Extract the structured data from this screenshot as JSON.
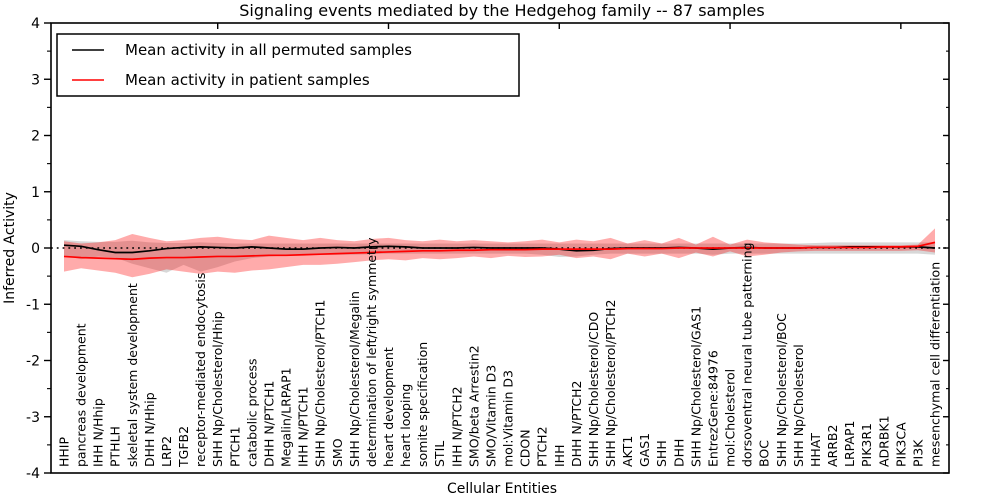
{
  "chart_data": {
    "type": "line",
    "title": "Signaling events mediated by the Hedgehog family -- 87 samples",
    "xlabel": "Cellular Entities",
    "ylabel": "Inferred Activity",
    "ylim": [
      -4,
      4
    ],
    "y_ticks": [
      4,
      3,
      2,
      1,
      0,
      -1,
      -2,
      -3,
      -4
    ],
    "y_minor_step": 0.5,
    "grid": false,
    "legend_position": "upper left",
    "legend": [
      "Mean activity in all permuted samples",
      "Mean activity in patient samples"
    ],
    "colors": {
      "permuted_line": "#000000",
      "patient_line": "#ff0000",
      "permuted_band": "rgba(110,110,110,0.28)",
      "patient_band": "rgba(255,0,0,0.33)",
      "axis": "#000000"
    },
    "zero_line": {
      "value": 0,
      "style": "dotted",
      "color": "#000000"
    },
    "top_tick_indices": [
      9,
      19,
      29,
      39,
      49
    ],
    "categories": [
      "HHIP",
      "pancreas development",
      "IHH N/Hhip",
      "PTHLH",
      "skeletal system development",
      "DHH N/Hhip",
      "LRP2",
      "TGFB2",
      "receptor-mediated endocytosis",
      "SHH Np/Cholesterol/Hhip",
      "PTCH1",
      "catabolic process",
      "DHH N/PTCH1",
      "Megalin/LRPAP1",
      "IHH N/PTCH1",
      "SHH Np/Cholesterol/PTCH1",
      "SMO",
      "SHH Np/Cholesterol/Megalin",
      "determination of left/right symmetry",
      "heart development",
      "heart looping",
      "somite specification",
      "STIL",
      "IHH N/PTCH2",
      "SMO/beta Arrestin2",
      "SMO/Vitamin D3",
      "mol:Vitamin D3",
      "CDON",
      "PTCH2",
      "IHH",
      "DHH N/PTCH2",
      "SHH Np/Cholesterol/CDO",
      "SHH Np/Cholesterol/PTCH2",
      "AKT1",
      "GAS1",
      "SHH",
      "DHH",
      "SHH Np/Cholesterol/GAS1",
      "EntrezGene:84976",
      "mol:Cholesterol",
      "dorsoventral neural tube patterning",
      "BOC",
      "SHH Np/Cholesterol/BOC",
      "SHH Np/Cholesterol",
      "HHAT",
      "ARRB2",
      "LRPAP1",
      "PIK3R1",
      "ADRBK1",
      "PIK3CA",
      "PI3K",
      "mesenchymal cell differentiation"
    ],
    "series": [
      {
        "name": "Mean activity in all permuted samples",
        "color": "#000000",
        "values": [
          0.05,
          0.03,
          -0.03,
          -0.08,
          -0.08,
          -0.05,
          -0.01,
          0.01,
          0.02,
          0.01,
          0.0,
          0.02,
          0.0,
          -0.02,
          -0.02,
          0.0,
          0.01,
          0.0,
          0.02,
          0.03,
          0.02,
          0.0,
          0.0,
          0.0,
          0.01,
          0.0,
          0.0,
          0.0,
          0.0,
          -0.02,
          -0.05,
          -0.04,
          -0.01,
          0.0,
          0.0,
          0.0,
          0.01,
          0.0,
          -0.02,
          0.0,
          0.01,
          0.0,
          0.0,
          0.0,
          0.01,
          0.01,
          0.02,
          0.02,
          0.02,
          0.02,
          0.02,
          0.0
        ]
      },
      {
        "name": "Mean activity in patient samples",
        "color": "#ff0000",
        "values": [
          -0.15,
          -0.17,
          -0.18,
          -0.19,
          -0.2,
          -0.18,
          -0.17,
          -0.17,
          -0.16,
          -0.15,
          -0.15,
          -0.14,
          -0.13,
          -0.13,
          -0.12,
          -0.11,
          -0.1,
          -0.09,
          -0.08,
          -0.07,
          -0.06,
          -0.05,
          -0.05,
          -0.04,
          -0.04,
          -0.03,
          -0.03,
          -0.03,
          -0.02,
          -0.02,
          -0.02,
          -0.02,
          -0.02,
          -0.01,
          -0.01,
          -0.01,
          0.0,
          0.0,
          0.0,
          0.0,
          0.0,
          0.0,
          0.0,
          0.0,
          0.01,
          0.01,
          0.01,
          0.01,
          0.02,
          0.02,
          0.03,
          0.1
        ]
      }
    ],
    "bands": [
      {
        "name": "permuted-sample-range",
        "color": "rgba(110,110,110,0.28)",
        "upper": [
          0.14,
          0.12,
          0.11,
          0.11,
          0.13,
          0.1,
          0.09,
          0.09,
          0.1,
          0.09,
          0.08,
          0.08,
          0.08,
          0.08,
          0.08,
          0.08,
          0.08,
          0.08,
          0.08,
          0.08,
          0.08,
          0.08,
          0.08,
          0.08,
          0.08,
          0.08,
          0.08,
          0.08,
          0.08,
          0.08,
          0.08,
          0.08,
          0.08,
          0.08,
          0.08,
          0.08,
          0.08,
          0.08,
          0.08,
          0.08,
          0.08,
          0.08,
          0.08,
          0.08,
          0.09,
          0.1,
          0.1,
          0.1,
          0.1,
          0.1,
          0.1,
          0.1
        ],
        "lower": [
          -0.13,
          -0.2,
          -0.15,
          -0.17,
          -0.28,
          -0.36,
          -0.44,
          -0.3,
          -0.42,
          -0.34,
          -0.24,
          -0.18,
          -0.15,
          -0.13,
          -0.12,
          -0.12,
          -0.12,
          -0.12,
          -0.11,
          -0.1,
          -0.1,
          -0.1,
          -0.1,
          -0.1,
          -0.1,
          -0.1,
          -0.1,
          -0.1,
          -0.12,
          -0.16,
          -0.15,
          -0.12,
          -0.1,
          -0.1,
          -0.1,
          -0.1,
          -0.1,
          -0.1,
          -0.12,
          -0.1,
          -0.1,
          -0.1,
          -0.1,
          -0.1,
          -0.1,
          -0.1,
          -0.1,
          -0.1,
          -0.1,
          -0.1,
          -0.1,
          -0.12
        ]
      },
      {
        "name": "patient-sample-range",
        "color": "rgba(255,0,0,0.33)",
        "upper": [
          0.12,
          0.08,
          0.1,
          0.14,
          0.25,
          0.18,
          0.12,
          0.14,
          0.18,
          0.2,
          0.16,
          0.14,
          0.22,
          0.18,
          0.14,
          0.18,
          0.14,
          0.12,
          0.16,
          0.18,
          0.14,
          0.12,
          0.15,
          0.12,
          0.14,
          0.12,
          0.1,
          0.12,
          0.15,
          0.1,
          0.15,
          0.12,
          0.18,
          0.08,
          0.14,
          0.08,
          0.18,
          0.06,
          0.2,
          0.06,
          0.15,
          0.1,
          0.08,
          0.06,
          0.05,
          0.05,
          0.05,
          0.05,
          0.05,
          0.05,
          0.06,
          0.35
        ],
        "lower": [
          -0.42,
          -0.36,
          -0.4,
          -0.44,
          -0.52,
          -0.46,
          -0.38,
          -0.42,
          -0.46,
          -0.42,
          -0.44,
          -0.4,
          -0.38,
          -0.34,
          -0.3,
          -0.3,
          -0.28,
          -0.25,
          -0.22,
          -0.2,
          -0.22,
          -0.18,
          -0.2,
          -0.18,
          -0.15,
          -0.18,
          -0.14,
          -0.16,
          -0.15,
          -0.12,
          -0.18,
          -0.15,
          -0.2,
          -0.1,
          -0.15,
          -0.1,
          -0.18,
          -0.08,
          -0.15,
          -0.06,
          -0.15,
          -0.12,
          -0.08,
          -0.06,
          -0.05,
          -0.05,
          -0.05,
          -0.05,
          -0.05,
          -0.05,
          -0.04,
          -0.08
        ]
      }
    ]
  }
}
